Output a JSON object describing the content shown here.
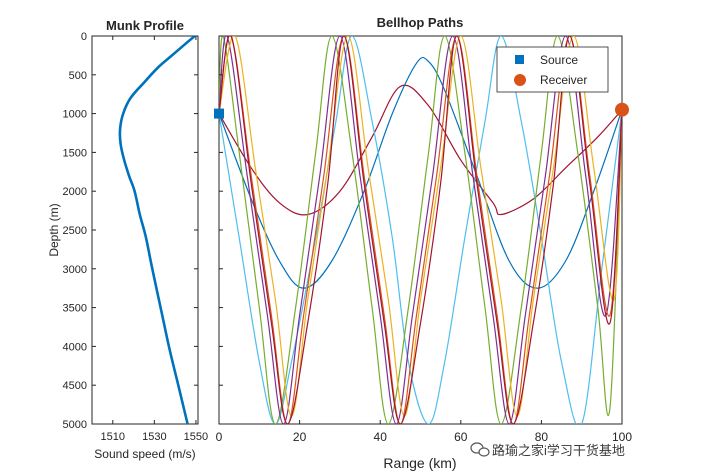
{
  "chart_data": [
    {
      "type": "line",
      "title": "Munk Profile",
      "xlabel": "Sound speed (m/s)",
      "ylabel": "Depth (m)",
      "xlim": [
        1500,
        1551
      ],
      "ylim": [
        0,
        5000
      ],
      "y_reversed": true,
      "xticks": [
        1510,
        1530,
        1550
      ],
      "yticks": [
        0,
        500,
        1000,
        1500,
        2000,
        2500,
        3000,
        3500,
        4000,
        4500,
        5000
      ],
      "color": "#0072BD",
      "series": [
        {
          "points": [
            [
              1549.5,
              0
            ],
            [
              1545.0,
              100
            ],
            [
              1538.5,
              250
            ],
            [
              1532.0,
              400
            ],
            [
              1525.0,
              600
            ],
            [
              1518.5,
              800
            ],
            [
              1515.0,
              1000
            ],
            [
              1513.5,
              1200
            ],
            [
              1513.8,
              1400
            ],
            [
              1515.5,
              1600
            ],
            [
              1517.8,
              1800
            ],
            [
              1520.5,
              2000
            ],
            [
              1523.0,
              2300
            ],
            [
              1526.0,
              2600
            ],
            [
              1529.0,
              3000
            ],
            [
              1533.0,
              3500
            ],
            [
              1537.0,
              4000
            ],
            [
              1541.5,
              4500
            ],
            [
              1546.0,
              5000
            ]
          ]
        }
      ]
    },
    {
      "type": "line",
      "title": "Bellhop Paths",
      "xlabel": "Range (km)",
      "xlim": [
        0,
        100
      ],
      "ylim": [
        0,
        5000
      ],
      "y_reversed": true,
      "xticks": [
        0,
        20,
        40,
        60,
        80,
        100
      ],
      "source": {
        "range": 0,
        "depth": 1000,
        "label": "Source",
        "color": "#0072BD"
      },
      "receiver": {
        "range": 100,
        "depth": 950,
        "label": "Receiver",
        "color": "#D95319"
      },
      "legend": {
        "position": "top-right",
        "entries": [
          "Source",
          "Receiver"
        ]
      },
      "series": [
        {
          "color": "#A2142F",
          "points": [
            [
              0,
              1000
            ],
            [
              8,
              1700
            ],
            [
              15,
              2150
            ],
            [
              22,
              2300
            ],
            [
              30,
              2000
            ],
            [
              38,
              1300
            ],
            [
              45,
              650
            ],
            [
              52,
              900
            ],
            [
              60,
              1600
            ],
            [
              68,
              2150
            ],
            [
              70,
              2300
            ],
            [
              78,
              2100
            ],
            [
              86,
              1700
            ],
            [
              94,
              1300
            ],
            [
              100,
              950
            ]
          ]
        },
        {
          "color": "#0072BD",
          "points": [
            [
              0,
              1000
            ],
            [
              8,
              2100
            ],
            [
              15,
              2900
            ],
            [
              21,
              3250
            ],
            [
              28,
              2900
            ],
            [
              36,
              2000
            ],
            [
              43,
              1000
            ],
            [
              49,
              350
            ],
            [
              52,
              330
            ],
            [
              56,
              700
            ],
            [
              64,
              1800
            ],
            [
              72,
              2900
            ],
            [
              79,
              3250
            ],
            [
              86,
              2900
            ],
            [
              93,
              2000
            ],
            [
              100,
              950
            ]
          ]
        },
        {
          "color": "#4DBEEE",
          "points": [
            [
              0,
              1000
            ],
            [
              5,
              2600
            ],
            [
              10,
              4200
            ],
            [
              14,
              5000
            ],
            [
              18,
              4200
            ],
            [
              24,
              2600
            ],
            [
              29,
              1100
            ],
            [
              33,
              0
            ],
            [
              38,
              1100
            ],
            [
              43,
              2600
            ],
            [
              47,
              4200
            ],
            [
              52,
              5000
            ],
            [
              56,
              4200
            ],
            [
              61,
              2600
            ],
            [
              66,
              1100
            ],
            [
              70,
              0
            ],
            [
              75,
              1100
            ],
            [
              80,
              2600
            ],
            [
              85,
              4200
            ],
            [
              90,
              5000
            ],
            [
              95,
              3000
            ],
            [
              100,
              950
            ]
          ]
        },
        {
          "color": "#77AC30",
          "points": [
            [
              0,
              1000
            ],
            [
              1,
              0
            ],
            [
              5,
              1500
            ],
            [
              10,
              3500
            ],
            [
              14,
              5000
            ],
            [
              19,
              3500
            ],
            [
              24,
              1500
            ],
            [
              28,
              0
            ],
            [
              33,
              1500
            ],
            [
              38,
              3500
            ],
            [
              42,
              5000
            ],
            [
              47,
              3500
            ],
            [
              52,
              1500
            ],
            [
              56,
              0
            ],
            [
              61,
              1500
            ],
            [
              66,
              3500
            ],
            [
              70,
              5000
            ],
            [
              75,
              3500
            ],
            [
              80,
              1500
            ],
            [
              84,
              0
            ],
            [
              89,
              1500
            ],
            [
              94,
              3500
            ],
            [
              97,
              4800
            ],
            [
              100,
              950
            ]
          ]
        },
        {
          "color": "#7E2F8E",
          "points": [
            [
              0,
              1000
            ],
            [
              2,
              0
            ],
            [
              7,
              1800
            ],
            [
              12,
              3600
            ],
            [
              16,
              5000
            ],
            [
              20,
              3600
            ],
            [
              25,
              1800
            ],
            [
              30,
              0
            ],
            [
              35,
              1800
            ],
            [
              40,
              3600
            ],
            [
              44,
              5000
            ],
            [
              48,
              3600
            ],
            [
              53,
              1800
            ],
            [
              58,
              0
            ],
            [
              63,
              1800
            ],
            [
              68,
              3600
            ],
            [
              72,
              5000
            ],
            [
              76,
              3600
            ],
            [
              81,
              1800
            ],
            [
              86,
              0
            ],
            [
              91,
              1800
            ],
            [
              96,
              3600
            ],
            [
              100,
              950
            ]
          ]
        },
        {
          "color": "#EDB120",
          "points": [
            [
              0,
              1000
            ],
            [
              4,
              0
            ],
            [
              9,
              1700
            ],
            [
              14,
              3400
            ],
            [
              18,
              4900
            ],
            [
              22,
              3400
            ],
            [
              27,
              1700
            ],
            [
              32,
              0
            ],
            [
              37,
              1700
            ],
            [
              42,
              3400
            ],
            [
              46,
              4900
            ],
            [
              50,
              3400
            ],
            [
              55,
              1700
            ],
            [
              60,
              0
            ],
            [
              65,
              1700
            ],
            [
              70,
              3400
            ],
            [
              74,
              4900
            ],
            [
              78,
              3400
            ],
            [
              83,
              1700
            ],
            [
              88,
              0
            ],
            [
              93,
              1700
            ],
            [
              98,
              3400
            ],
            [
              100,
              950
            ]
          ]
        },
        {
          "color": "#D95319",
          "points": [
            [
              0,
              1000
            ],
            [
              3,
              0
            ],
            [
              8,
              1800
            ],
            [
              13,
              3600
            ],
            [
              17,
              5000
            ],
            [
              21,
              3600
            ],
            [
              26,
              1800
            ],
            [
              31,
              0
            ],
            [
              36,
              1800
            ],
            [
              41,
              3600
            ],
            [
              45,
              5000
            ],
            [
              49,
              3600
            ],
            [
              54,
              1800
            ],
            [
              59,
              0
            ],
            [
              64,
              1800
            ],
            [
              69,
              3600
            ],
            [
              73,
              5000
            ],
            [
              77,
              3600
            ],
            [
              82,
              1800
            ],
            [
              87,
              0
            ],
            [
              92,
              1800
            ],
            [
              97,
              3600
            ],
            [
              100,
              950
            ]
          ]
        },
        {
          "color": "#A2142F",
          "points": [
            [
              0,
              1000
            ],
            [
              3,
              0
            ],
            [
              8,
              1900
            ],
            [
              13,
              3700
            ],
            [
              17,
              5000
            ],
            [
              22,
              3700
            ],
            [
              27,
              1900
            ],
            [
              31,
              0
            ],
            [
              36,
              1900
            ],
            [
              41,
              3700
            ],
            [
              45,
              5000
            ],
            [
              50,
              3700
            ],
            [
              55,
              1900
            ],
            [
              59,
              0
            ],
            [
              64,
              1900
            ],
            [
              69,
              3700
            ],
            [
              73,
              5000
            ],
            [
              78,
              3700
            ],
            [
              83,
              1900
            ],
            [
              87,
              0
            ],
            [
              92,
              1900
            ],
            [
              97,
              3700
            ],
            [
              100,
              950
            ]
          ]
        }
      ]
    }
  ],
  "watermark": "路瑜之家i学习干货基地"
}
